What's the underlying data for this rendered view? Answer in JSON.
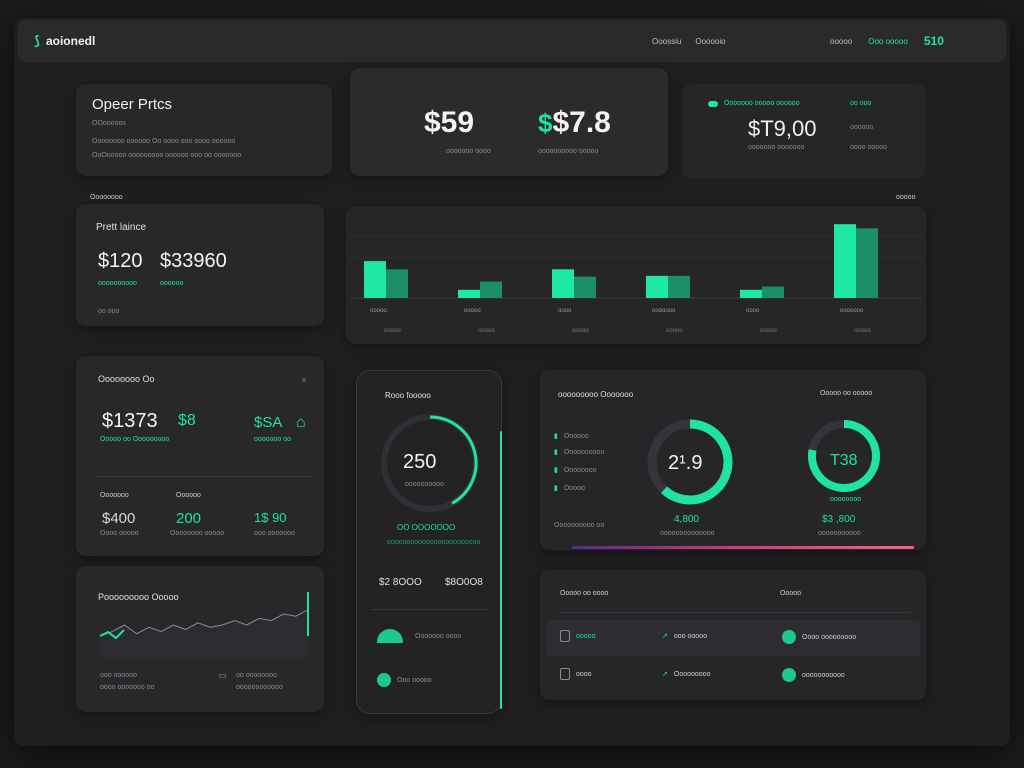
{
  "topbar": {
    "logo": "Бяясцировани",
    "logo_text": "aoionedl",
    "nav": [
      "Ooossiu",
      "Oooooio"
    ],
    "nav_right": [
      "ooooo",
      "Ooo ooooo"
    ],
    "balance": "510"
  },
  "overview": {
    "title": "Opeer Prtcs",
    "subtitle": "OOooooos",
    "line1": "Oooooooo oooooo Oo oooo ooo oooo oooooo",
    "line2": "OoOooooo ooooooooo oooooo ooo oo ooooooo"
  },
  "stats": {
    "a_value": "$59",
    "b_value": "$7.8",
    "a_label": "ooooooo oooo",
    "b_label": "oooooooooo ooooo"
  },
  "summary": {
    "top_label": "Ooooooo ooooo oooooo",
    "top_label2": "oo ooo",
    "amount": "$T9,00",
    "amount_label": "ooooooo ooooooo",
    "right1": "oooooo",
    "right2": "oooo ooooo"
  },
  "sections": {
    "left": "Oooooooo",
    "right": "ooooo"
  },
  "balance_card": {
    "title": "Prett laince",
    "value1": "$120",
    "value2": "$33960",
    "label1": "oooooooooo",
    "label2": "oooooo",
    "label3": "oo ooo"
  },
  "chart_data": {
    "type": "bar",
    "categories": [
      "ooooo",
      "ooooo",
      "oooo",
      "ooooooo",
      "oooo",
      "ooooooo"
    ],
    "series": [
      {
        "values": [
          45,
          10,
          35,
          27,
          10,
          90
        ]
      },
      {
        "values": [
          35,
          20,
          26,
          27,
          14,
          85
        ]
      }
    ],
    "sublabels": [
      "ooooo",
      "ooooo",
      "ooooo",
      "ooooo",
      "ooooo",
      "ooooo"
    ],
    "colors": [
      "#1ee8a4",
      "#1a8f6a"
    ]
  },
  "cashflow": {
    "title": "Oooooooo Oo",
    "value1": "$1373",
    "value1b": "$8",
    "value2": "$SA",
    "label1": "Ooooo oo Ooooooooo",
    "label2": "ooooooo oo",
    "head1": "Ooooooo",
    "head2": "Oooooo",
    "s1": "$400",
    "s2": "200",
    "s3": "1$ 90",
    "sl1": "Oooo ooooo",
    "sl2": "Oooooooo ooooo",
    "sl3": "ooo ooooooo"
  },
  "performance": {
    "title": "Pooooooooo Ooooo",
    "l1": "ooo oooooo",
    "l2": "oooo ooooooo oo",
    "l3": "oo oooooooo",
    "l4": "oooooooooooo",
    "series": [
      20,
      24,
      30,
      22,
      28,
      24,
      30,
      26,
      32,
      28,
      30,
      34,
      30,
      36,
      34,
      40,
      38,
      44
    ]
  },
  "phone": {
    "title": "Rooo fooooo",
    "gauge_value": "250",
    "gauge_label": "oooooooooo",
    "gauge_pct": 0.42,
    "accent_label": "OO OOOOOOO",
    "accent_sub": "oooooooooooooooooooooooo",
    "k1": "$2 8OOO",
    "k2": "$8O0O8",
    "item1": "Ooooooo oooo",
    "item2": "Ooo ooooo"
  },
  "donuts": {
    "title": "ooooooooo Ooooooo",
    "title2": "Ooooo oo ooooo",
    "legend": [
      "Oooooo",
      "Oooooooooo",
      "Oooooooo",
      "Ooooo"
    ],
    "bottom_label": "Oooooooooo oo",
    "d1_value": "2¹.9",
    "d1_pct": 0.62,
    "d1_sub": "4,800",
    "d1_label": "oooooooooooooo",
    "d2_value": "T38",
    "d2_pct": 0.78,
    "d2_label0": "oooooooo",
    "d2_sub": "$3 ,800",
    "d2_label": "ooooooooooo"
  },
  "transactions": {
    "head1": "Ooooo oo oooo",
    "head2": "Ooooo",
    "rows": [
      {
        "a": "ooooo",
        "b": "ooo ooooo",
        "c": "Oooo ooooooooo"
      },
      {
        "a": "oooo",
        "b": "Ooooooooo",
        "c": "ooooooooooo"
      }
    ]
  },
  "colors": {
    "accent": "#20e3a2",
    "bg": "#1b1b1e",
    "card": "#28282b"
  }
}
